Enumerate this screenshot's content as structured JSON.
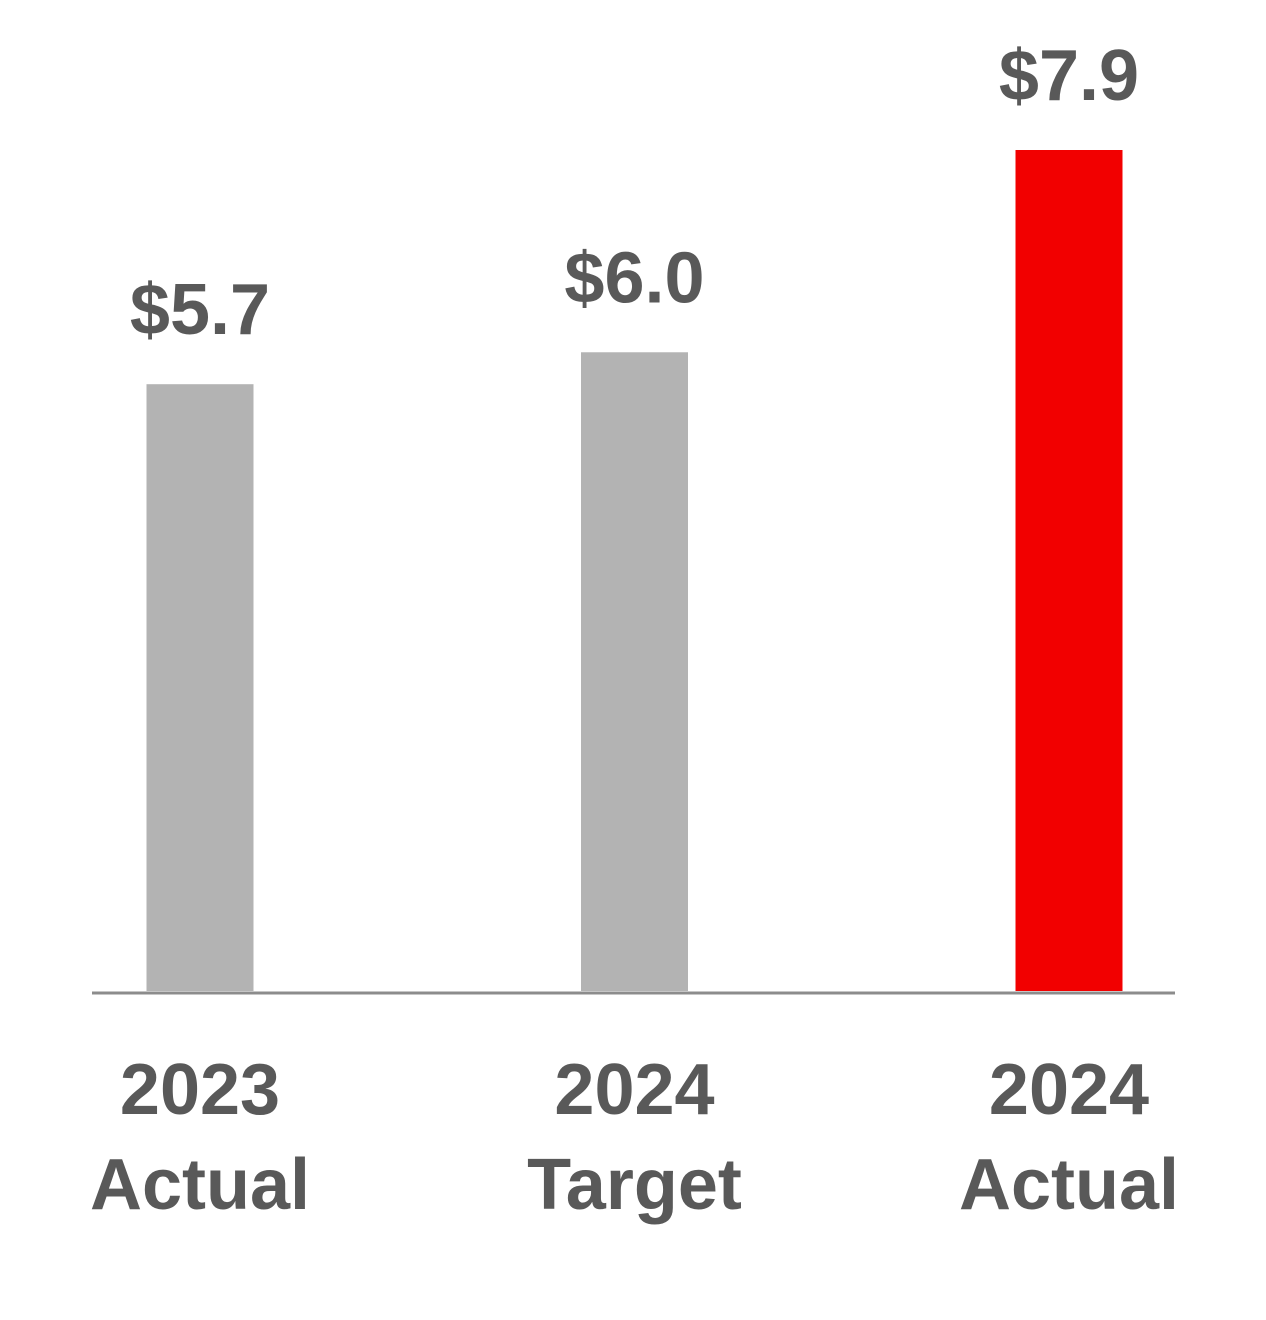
{
  "chart_data": {
    "type": "bar",
    "categories": [
      [
        "2023",
        "Actual"
      ],
      [
        "2024",
        "Target"
      ],
      [
        "2024",
        "Actual"
      ]
    ],
    "values": [
      5.7,
      6.0,
      7.9
    ],
    "value_labels": [
      "$5.7",
      "$6.0",
      "$7.9"
    ],
    "colors": [
      "#b3b3b3",
      "#b3b3b3",
      "#f20000"
    ],
    "ylim": [
      0,
      7.9
    ]
  }
}
